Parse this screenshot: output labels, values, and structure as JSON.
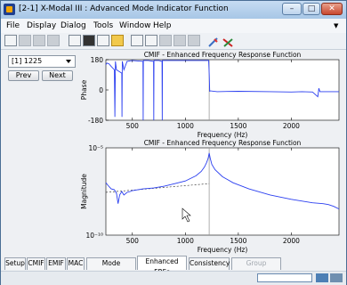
{
  "window": {
    "title": "[2-1] X-Modal III : Advanced Mode Indicator Function",
    "min_glyph": "–",
    "max_glyph": "□",
    "close_glyph": "✕"
  },
  "menu": [
    "File",
    "Display",
    "Dialog",
    "Tools",
    "Window",
    "Help"
  ],
  "toolbar_icons": [
    "grid-icon",
    "grid-icon",
    "grid-icon",
    "grid-icon",
    "new-doc-icon",
    "camera-icon",
    "printer-icon",
    "folder-icon",
    "copy-icon",
    "book-icon",
    "block-icon",
    "block-icon",
    "block-icon",
    "pen-icon",
    "tool-icon"
  ],
  "side": {
    "selected": "[1] 1225",
    "prev": "Prev",
    "next": "Next"
  },
  "chart_data": [
    {
      "type": "line",
      "title": "CMIF - Enhanced Frequency Response Function",
      "xlabel": "Frequency (Hz)",
      "ylabel": "Phase",
      "xlim": [
        250,
        2450
      ],
      "ylim": [
        -180,
        180
      ],
      "xticks": [
        500,
        1000,
        1500,
        2000
      ],
      "yticks": [
        180,
        0,
        -180
      ],
      "x": [
        250,
        260,
        280,
        300,
        330,
        335,
        340,
        350,
        400,
        402,
        405,
        420,
        450,
        500,
        600,
        602,
        604,
        650,
        700,
        702,
        704,
        750,
        780,
        782,
        784,
        830,
        900,
        1000,
        1100,
        1180,
        1220,
        1225,
        1230,
        1232,
        1300,
        1500,
        1800,
        2000,
        2100,
        2200,
        2250,
        2260,
        2270,
        2400,
        2450
      ],
      "values": [
        150,
        160,
        155,
        140,
        120,
        -160,
        170,
        120,
        100,
        -160,
        170,
        120,
        170,
        175,
        170,
        -180,
        175,
        175,
        170,
        -180,
        175,
        175,
        170,
        -180,
        175,
        175,
        175,
        175,
        175,
        175,
        175,
        100,
        -10,
        -5,
        -10,
        -8,
        -10,
        -12,
        -10,
        -12,
        -40,
        10,
        -10,
        -10,
        -10
      ]
    },
    {
      "type": "line",
      "title": "CMIF - Enhanced Frequency Response Function",
      "xlabel": "Frequency (Hz)",
      "ylabel": "Magnitude",
      "xlim": [
        250,
        2450
      ],
      "ylim": [
        -10,
        -5
      ],
      "yscale": "log",
      "xticks": [
        500,
        1000,
        1500,
        2000
      ],
      "ytick_labels": [
        "10⁻⁵",
        "10⁻¹⁰"
      ],
      "x": [
        250,
        270,
        300,
        330,
        350,
        365,
        380,
        400,
        420,
        450,
        480,
        500,
        550,
        600,
        700,
        800,
        900,
        1000,
        1100,
        1150,
        1180,
        1200,
        1215,
        1225,
        1235,
        1250,
        1280,
        1350,
        1450,
        1600,
        1800,
        2000,
        2200,
        2300,
        2350,
        2400,
        2450
      ],
      "values": [
        -7.0,
        -7.15,
        -7.35,
        -7.4,
        -7.6,
        -8.2,
        -7.7,
        -7.5,
        -7.7,
        -7.55,
        -7.5,
        -7.45,
        -7.4,
        -7.35,
        -7.3,
        -7.2,
        -7.05,
        -6.9,
        -6.6,
        -6.35,
        -6.1,
        -5.85,
        -5.6,
        -5.3,
        -5.6,
        -5.95,
        -6.25,
        -6.65,
        -7.0,
        -7.35,
        -7.7,
        -7.95,
        -8.15,
        -8.2,
        -8.25,
        -8.35,
        -8.5
      ],
      "dashed_x": [
        250,
        1225
      ],
      "dashed_values": [
        -7.55,
        -7.05
      ],
      "reference_line_x": 1225
    }
  ],
  "tabs": [
    {
      "label": "Setup",
      "state": "normal"
    },
    {
      "label": "CMIF",
      "state": "normal"
    },
    {
      "label": "EMIF",
      "state": "normal"
    },
    {
      "label": "MAC",
      "state": "normal"
    },
    {
      "label": "Mode Tracking",
      "state": "normal"
    },
    {
      "label": "Enhanced FRFs",
      "state": "active"
    },
    {
      "label": "Consistency",
      "state": "normal"
    },
    {
      "label": "Group Manager",
      "state": "disabled"
    }
  ],
  "colors": {
    "line": "#2b3ff0",
    "refline": "#9a9a9a",
    "titlebar": "#a7c6e6",
    "accent": "#4d7fb5"
  }
}
